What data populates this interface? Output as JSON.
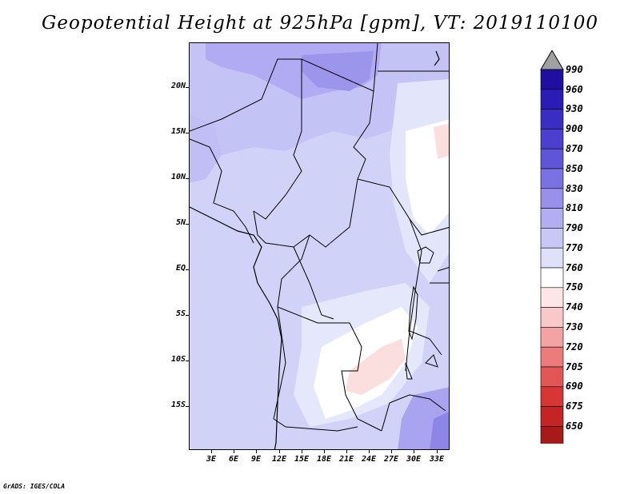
{
  "title": "Geopotential Height at 925hPa [gpm], VT: 2019110100",
  "credit": "GrADS: IGES/COLA",
  "map": {
    "region_lon_range": [
      0,
      35
    ],
    "region_lat_range": [
      -20,
      25
    ],
    "lat_ticks": [
      "20N",
      "15N",
      "10N",
      "5N",
      "EQ",
      "5S",
      "10S",
      "15S"
    ],
    "lon_ticks": [
      "3E",
      "6E",
      "9E",
      "12E",
      "15E",
      "18E",
      "21E",
      "24E",
      "27E",
      "30E",
      "33E"
    ],
    "field_colors": {
      "830": "#a9a4f2",
      "810": "#c3c2f5",
      "790": "#d2d4f7",
      "770": "#e6e8fb",
      "760": "#ffffff",
      "750": "#fde4e4"
    }
  },
  "colorbar": {
    "labels": [
      "990",
      "960",
      "930",
      "900",
      "870",
      "850",
      "830",
      "810",
      "790",
      "770",
      "760",
      "750",
      "740",
      "730",
      "720",
      "705",
      "690",
      "675",
      "650"
    ],
    "colors": [
      "#1e0fa0",
      "#2b1cb6",
      "#3a2dc4",
      "#4b3fce",
      "#5e55d8",
      "#7a72e2",
      "#9890ea",
      "#b2aef1",
      "#c8c8f6",
      "#dfe1fb",
      "#ffffff",
      "#fde6e6",
      "#f9c8c8",
      "#f3a3a3",
      "#ec7b7b",
      "#e35656",
      "#d63636",
      "#c42424",
      "#a81a1a",
      "#8c1212"
    ],
    "top_triangle_color": "#a0a0a0"
  }
}
